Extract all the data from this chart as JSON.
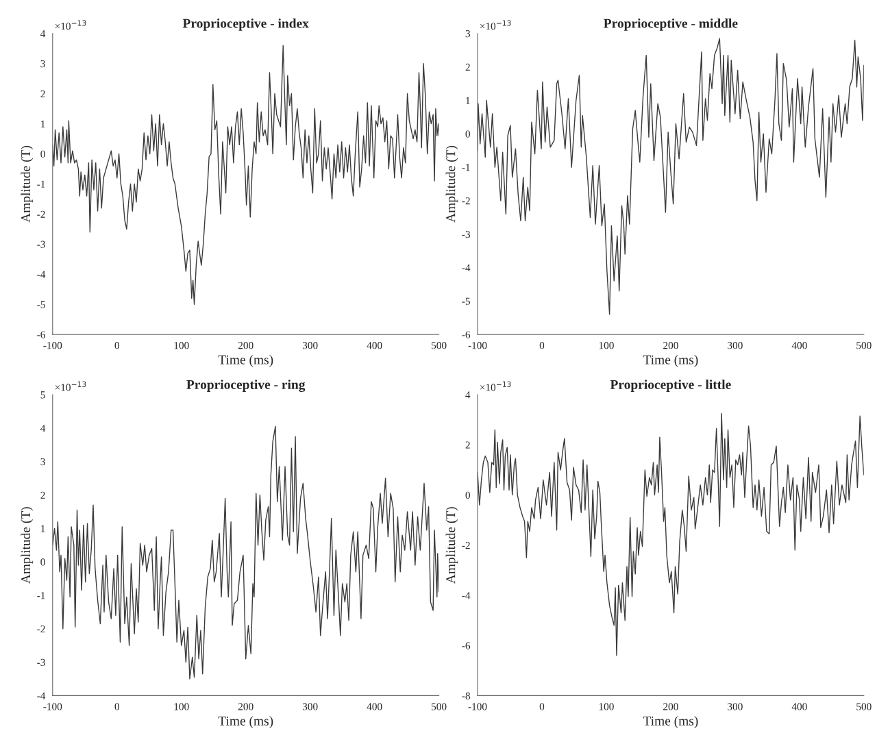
{
  "chart_data": [
    {
      "type": "line",
      "title": "Proprioceptive - index",
      "xlabel": "Time (ms)",
      "ylabel": "Amplitude (T)",
      "annotations": [
        "×10$^{−13}$"
      ],
      "xlim": [
        -100,
        500
      ],
      "xticks": [
        -100,
        0,
        100,
        200,
        300,
        400,
        500
      ],
      "ylim": [
        -6,
        4
      ],
      "yticks": [
        -6,
        -5,
        -4,
        -3,
        -2,
        -1,
        0,
        1,
        2,
        3,
        4
      ],
      "series": [
        {
          "color": "#3a3a3a",
          "x": [
            -100,
            -98,
            -96,
            -93,
            -90,
            -87,
            -84,
            -81,
            -78,
            -76,
            -75,
            -72,
            -69,
            -66,
            -63,
            -60,
            -58,
            -56,
            -53,
            -50,
            -47,
            -44,
            -42,
            -39,
            -36,
            -33,
            -30,
            -27,
            -24,
            -21,
            -17,
            -13,
            -9,
            -6,
            -3,
            0,
            3,
            6,
            9,
            12,
            15,
            18,
            21,
            24,
            27,
            30,
            33,
            36,
            39,
            42,
            45,
            48,
            51,
            54,
            57,
            60,
            63,
            66,
            69,
            72,
            75,
            78,
            81,
            84,
            87,
            90,
            95,
            100,
            104,
            107,
            110,
            113,
            116,
            118,
            120,
            123,
            126,
            129,
            131,
            134,
            137,
            140,
            143,
            146,
            149,
            152,
            155,
            158,
            161,
            164,
            167,
            169,
            172,
            175,
            178,
            181,
            184,
            187,
            190,
            193,
            196,
            199,
            201,
            204,
            207,
            210,
            213,
            216,
            218,
            221,
            224,
            227,
            230,
            234,
            237,
            240,
            242,
            245,
            248,
            251,
            254,
            258,
            260,
            263,
            265,
            268,
            271,
            274,
            277,
            280,
            283,
            286,
            289,
            292,
            295,
            298,
            301,
            304,
            307,
            310,
            313,
            316,
            319,
            322,
            325,
            328,
            331,
            334,
            337,
            340,
            343,
            346,
            349,
            352,
            355,
            358,
            361,
            364,
            367,
            370,
            374,
            377,
            380,
            383,
            386,
            389,
            392,
            395,
            399,
            402,
            405,
            407,
            410,
            413,
            416,
            419,
            422,
            425,
            428,
            431,
            434,
            436,
            439,
            442,
            445,
            448,
            451,
            454,
            457,
            460,
            463,
            466,
            469,
            471,
            473,
            476,
            479,
            482,
            485,
            488,
            491,
            493,
            495,
            497,
            499,
            500
          ],
          "values": [
            0.3,
            -0.4,
            0.8,
            -0.2,
            0.7,
            -0.3,
            0.9,
            -0.1,
            0.8,
            -0.3,
            1.1,
            -0.3,
            0.1,
            -0.3,
            -0.2,
            -0.5,
            -1.4,
            -0.6,
            -1.2,
            -0.7,
            -1.4,
            -0.3,
            -2.6,
            -0.2,
            -1.2,
            -0.3,
            -1.9,
            -0.5,
            -1.8,
            -0.8,
            -0.5,
            -0.2,
            0.1,
            -0.4,
            -0.2,
            -0.8,
            0.0,
            -1.0,
            -1.4,
            -2.2,
            -2.5,
            -1.6,
            -1.0,
            -1.9,
            -1.0,
            -1.6,
            -0.5,
            -0.9,
            -0.5,
            0.7,
            -0.2,
            0.6,
            0.0,
            1.3,
            0.1,
            1.0,
            -0.4,
            1.3,
            0.3,
            1.0,
            0.4,
            -0.4,
            0.4,
            -0.3,
            -0.8,
            -1.0,
            -1.8,
            -2.4,
            -3.2,
            -3.9,
            -3.3,
            -3.2,
            -4.8,
            -4.2,
            -5.0,
            -3.7,
            -2.9,
            -3.4,
            -3.7,
            -3.0,
            -2.0,
            -1.3,
            -0.1,
            0.0,
            2.3,
            0.8,
            1.1,
            -0.7,
            -2.0,
            0.4,
            -0.6,
            -1.3,
            0.9,
            0.3,
            0.9,
            -0.3,
            0.9,
            1.4,
            0.3,
            1.5,
            0.7,
            -0.6,
            -1.7,
            -0.4,
            -2.1,
            -0.5,
            0.4,
            0.0,
            1.7,
            0.4,
            1.4,
            0.6,
            0.8,
            0.3,
            2.7,
            1.2,
            0.0,
            2.0,
            1.3,
            1.1,
            0.9,
            3.6,
            2.2,
            0.3,
            2.6,
            1.6,
            2.0,
            -0.2,
            0.9,
            1.5,
            0.7,
            0.2,
            -0.8,
            0.8,
            -0.3,
            0.6,
            -0.5,
            -1.3,
            1.5,
            -0.3,
            0.0,
            1.1,
            -0.9,
            0.2,
            -0.5,
            0.2,
            -0.6,
            -1.5,
            0.0,
            -0.8,
            0.3,
            -0.6,
            0.4,
            -0.8,
            0.2,
            -0.6,
            0.3,
            -0.8,
            -1.4,
            0.0,
            1.4,
            -1.1,
            -0.5,
            0.6,
            -0.3,
            1.7,
            -0.4,
            1.6,
            -0.8,
            1.1,
            0.9,
            1.6,
            1.0,
            1.2,
            0.4,
            1.1,
            -0.5,
            0.6,
            0.5,
            -0.8,
            0.4,
            1.3,
            -0.1,
            -0.8,
            0.2,
            -0.3,
            2.0,
            1.1,
            0.8,
            0.5,
            0.8,
            0.4,
            2.7,
            1.6,
            0.2,
            3.0,
            1.9,
            0.0,
            1.4,
            1.0,
            1.3,
            -0.9,
            1.5,
            0.6,
            1.0,
            0.6
          ]
        }
      ]
    },
    {
      "type": "line",
      "title": "Proprioceptive - middle",
      "xlabel": "Time (ms)",
      "ylabel": "Amplitude (T)",
      "annotations": [
        "×10$^{−13}$"
      ],
      "xlim": [
        -100,
        500
      ],
      "xticks": [
        -100,
        0,
        100,
        200,
        300,
        400,
        500
      ],
      "ylim": [
        -6,
        3
      ],
      "yticks": [
        -6,
        -5,
        -4,
        -3,
        -2,
        -1,
        0,
        1,
        2,
        3
      ],
      "series": [
        {
          "color": "#3a3a3a",
          "x": [
            -100,
            -99,
            -96,
            -93,
            -88,
            -86,
            -83,
            -80,
            -77,
            -73,
            -70,
            -64,
            -61,
            -56,
            -53,
            -49,
            -46,
            -41,
            -37,
            -33,
            -29,
            -26,
            -22,
            -19,
            -16,
            -11,
            -7,
            -1,
            1,
            5,
            8,
            13,
            19,
            23,
            25,
            31,
            36,
            41,
            46,
            53,
            58,
            61,
            63,
            69,
            75,
            79,
            83,
            89,
            93,
            97,
            101,
            105,
            108,
            112,
            117,
            120,
            124,
            127,
            129,
            133,
            136,
            141,
            145,
            148,
            152,
            157,
            162,
            166,
            169,
            174,
            180,
            184,
            192,
            196,
            200,
            204,
            208,
            213,
            220,
            224,
            229,
            234,
            240,
            248,
            250,
            254,
            257,
            261,
            264,
            268,
            272,
            276,
            280,
            282,
            284,
            289,
            292,
            294,
            300,
            304,
            308,
            312,
            318,
            323,
            328,
            331,
            334,
            337,
            340,
            344,
            348,
            353,
            357,
            362,
            365,
            368,
            372,
            375,
            380,
            384,
            389,
            391,
            397,
            402,
            404,
            409,
            414,
            421,
            424,
            431,
            436,
            441,
            446,
            449,
            452,
            456,
            461,
            465,
            471,
            474,
            478,
            482,
            486,
            489,
            491,
            495,
            498,
            500
          ],
          "values": [
            -0.5,
            0.9,
            -0.3,
            0.6,
            -0.7,
            1.0,
            0.3,
            -0.4,
            0.6,
            -1.0,
            -0.4,
            -2.0,
            -0.55,
            -2.4,
            -0.05,
            0.25,
            -1.3,
            -0.45,
            -1.8,
            -2.6,
            -1.3,
            -2.6,
            -1.6,
            -2.3,
            0.35,
            -0.6,
            1.3,
            -0.45,
            1.55,
            -0.25,
            0.8,
            -0.4,
            -0.2,
            1.5,
            1.6,
            0.6,
            -0.45,
            1.05,
            -1.0,
            1.0,
            1.75,
            -0.4,
            0.55,
            -0.7,
            -2.5,
            -0.95,
            -2.7,
            -0.95,
            -2.75,
            -2.1,
            -4.1,
            -5.4,
            -2.75,
            -4.4,
            -3.05,
            -4.7,
            -2.15,
            -2.7,
            -3.6,
            -1.85,
            -2.7,
            0.15,
            0.7,
            0.0,
            -0.85,
            1.1,
            2.35,
            -0.1,
            1.5,
            -0.8,
            0.9,
            0.5,
            -2.35,
            0.05,
            -1.1,
            -2.1,
            0.3,
            -0.75,
            1.2,
            -0.25,
            0.2,
            0.05,
            -0.35,
            2.45,
            -0.2,
            1.05,
            0.4,
            1.8,
            1.35,
            2.35,
            2.55,
            2.85,
            0.9,
            2.35,
            0.55,
            2.35,
            0.35,
            2.2,
            0.6,
            1.9,
            0.45,
            1.55,
            0.95,
            0.5,
            -0.25,
            -1.4,
            -2.0,
            0.65,
            -0.85,
            0.0,
            -1.75,
            -0.15,
            -0.6,
            1.05,
            2.4,
            0.3,
            -0.2,
            2.1,
            1.6,
            0.2,
            1.35,
            -0.85,
            1.65,
            0.3,
            1.4,
            -0.4,
            0.8,
            1.95,
            -0.15,
            -1.3,
            0.75,
            -1.9,
            0.5,
            -0.85,
            0.9,
            0.05,
            1.15,
            -0.1,
            0.9,
            0.3,
            1.4,
            1.65,
            2.8,
            1.4,
            2.3,
            1.65,
            0.4,
            2.05
          ]
        }
      ]
    },
    {
      "type": "line",
      "title": "Proprioceptive - ring",
      "xlabel": "Time (ms)",
      "ylabel": "Amplitude (T)",
      "annotations": [
        "×10$^{−13}$"
      ],
      "xlim": [
        -100,
        500
      ],
      "xticks": [
        -100,
        0,
        100,
        200,
        300,
        400,
        500
      ],
      "ylim": [
        -4,
        5
      ],
      "yticks": [
        -4,
        -3,
        -2,
        -1,
        0,
        1,
        2,
        3,
        4,
        5
      ],
      "series": [
        {
          "color": "#3a3a3a",
          "x": [
            -100,
            -97,
            -94,
            -92,
            -89,
            -87,
            -84,
            -81,
            -78,
            -76,
            -73,
            -71,
            -67,
            -65,
            -62,
            -60,
            -58,
            -55,
            -52,
            -49,
            -46,
            -43,
            -40,
            -37,
            -34,
            -30,
            -26,
            -22,
            -20,
            -17,
            -13,
            -9,
            -5,
            -2,
            1,
            5,
            8,
            12,
            15,
            19,
            22,
            27,
            30,
            33,
            36,
            40,
            43,
            46,
            50,
            54,
            58,
            61,
            64,
            67,
            69,
            72,
            76,
            80,
            84,
            87,
            90,
            93,
            96,
            100,
            104,
            107,
            110,
            113,
            117,
            120,
            124,
            127,
            130,
            133,
            137,
            141,
            145,
            148,
            151,
            154,
            159,
            162,
            165,
            168,
            171,
            173,
            177,
            179,
            182,
            187,
            191,
            196,
            200,
            204,
            208,
            211,
            213,
            216,
            219,
            222,
            225,
            228,
            231,
            235,
            237,
            239,
            242,
            246,
            249,
            252,
            257,
            261,
            265,
            268,
            271,
            274,
            277,
            280,
            285,
            289,
            293,
            296,
            300,
            305,
            309,
            313,
            316,
            320,
            324,
            327,
            330,
            333,
            337,
            340,
            344,
            347,
            350,
            354,
            357,
            360,
            363,
            367,
            371,
            374,
            379,
            382,
            387,
            391,
            395,
            398,
            402,
            405,
            409,
            412,
            417,
            421,
            425,
            429,
            432,
            436,
            440,
            443,
            447,
            451,
            456,
            459,
            463,
            467,
            471,
            477,
            481,
            484,
            487,
            491,
            493,
            497,
            498,
            500
          ],
          "values": [
            0.5,
            1.0,
            0.35,
            1.2,
            -0.3,
            0.2,
            -2.0,
            0.1,
            -0.55,
            0.75,
            -1.05,
            1.05,
            0.5,
            -1.95,
            1.55,
            -0.1,
            0.95,
            -0.85,
            1.1,
            -0.6,
            1.15,
            -0.35,
            0.35,
            1.7,
            -0.2,
            -1.15,
            -1.85,
            -0.1,
            -1.5,
            0.2,
            -1.2,
            -1.7,
            -0.2,
            -1.6,
            0.2,
            -2.4,
            1.05,
            -1.85,
            -1.05,
            -2.5,
            -0.05,
            -2.15,
            -0.8,
            -1.8,
            0.55,
            -0.1,
            0.5,
            -0.3,
            0.2,
            0.4,
            -1.45,
            0.75,
            -2.0,
            -0.6,
            0.15,
            -2.2,
            -0.9,
            -0.3,
            0.95,
            0.95,
            -0.65,
            -2.4,
            -1.15,
            -2.5,
            -2.05,
            -3.0,
            -1.95,
            -3.5,
            -2.85,
            -3.45,
            -1.6,
            -2.9,
            -2.05,
            -3.35,
            -1.35,
            -0.45,
            -0.2,
            0.65,
            -0.6,
            -0.3,
            0.85,
            -1.05,
            0.35,
            1.9,
            -0.3,
            -1.05,
            1.2,
            -1.9,
            -1.25,
            -1.15,
            -0.3,
            0.2,
            -2.9,
            -1.9,
            -2.75,
            -0.65,
            -1.05,
            2.05,
            0.5,
            2.0,
            0.9,
            0.05,
            1.25,
            1.65,
            0.75,
            2.6,
            3.6,
            4.05,
            1.8,
            2.85,
            0.65,
            2.85,
            0.8,
            0.5,
            3.4,
            0.9,
            3.75,
            0.25,
            1.9,
            2.35,
            1.3,
            0.8,
            0.05,
            -0.75,
            -1.5,
            -0.45,
            -2.2,
            -1.2,
            -0.3,
            -1.7,
            -0.3,
            1.3,
            -1.6,
            0.35,
            -1.05,
            -2.2,
            -0.65,
            -1.2,
            -0.65,
            -1.75,
            0.2,
            0.9,
            -0.3,
            0.9,
            -1.7,
            0.2,
            0.5,
            0.1,
            1.8,
            1.6,
            -0.3,
            1.05,
            2.05,
            1.15,
            2.5,
            0.75,
            2.05,
            1.6,
            -0.6,
            1.35,
            -0.3,
            0.8,
            0.35,
            1.5,
            0.35,
            1.5,
            -0.1,
            1.35,
            0.35,
            2.35,
            0.95,
            1.65,
            -1.2,
            -1.45,
            0.95,
            -1.05,
            0.25,
            -0.9
          ]
        }
      ]
    },
    {
      "type": "line",
      "title": "Proprioceptive - little",
      "xlabel": "Time (ms)",
      "ylabel": "Amplitude (T)",
      "annotations": [
        "×10$^{−13}$"
      ],
      "xlim": [
        -100,
        500
      ],
      "xticks": [
        -100,
        0,
        100,
        200,
        300,
        400,
        500
      ],
      "ylim": [
        -8,
        4
      ],
      "yticks": [
        -8,
        -6,
        -4,
        -2,
        0,
        2,
        4
      ],
      "series": [
        {
          "color": "#3a3a3a",
          "x": [
            -100,
            -97,
            -94,
            -91,
            -88,
            -84,
            -81,
            -78,
            -75,
            -73,
            -71,
            -69,
            -66,
            -64,
            -61,
            -59,
            -57,
            -54,
            -51,
            -49,
            -46,
            -43,
            -41,
            -38,
            -34,
            -30,
            -27,
            -24,
            -22,
            -19,
            -16,
            -12,
            -10,
            -6,
            -2,
            2,
            7,
            12,
            15,
            19,
            23,
            25,
            29,
            32,
            35,
            39,
            43,
            46,
            49,
            53,
            57,
            61,
            64,
            67,
            70,
            73,
            76,
            79,
            82,
            85,
            87,
            90,
            92,
            96,
            98,
            101,
            105,
            109,
            112,
            114,
            116,
            119,
            123,
            125,
            129,
            132,
            134,
            137,
            140,
            142,
            145,
            148,
            150,
            153,
            156,
            160,
            163,
            167,
            170,
            173,
            175,
            179,
            181,
            183,
            186,
            189,
            191,
            194,
            198,
            201,
            205,
            207,
            211,
            214,
            218,
            221,
            224,
            228,
            232,
            236,
            238,
            242,
            246,
            250,
            254,
            257,
            260,
            262,
            265,
            268,
            271,
            273,
            276,
            279,
            282,
            284,
            287,
            289,
            292,
            295,
            298,
            301,
            304,
            307,
            310,
            312,
            315,
            318,
            321,
            324,
            328,
            331,
            334,
            337,
            341,
            345,
            349,
            353,
            356,
            360,
            364,
            369,
            372,
            375,
            378,
            382,
            386,
            390,
            393,
            396,
            400,
            402,
            406,
            410,
            414,
            418,
            420,
            425,
            430,
            433,
            437,
            442,
            446,
            450,
            453,
            458,
            462,
            466,
            472,
            474,
            477,
            481,
            484,
            487,
            490,
            494,
            497,
            500
          ],
          "values": [
            0.9,
            -0.4,
            0.6,
            1.3,
            1.55,
            1.3,
            0.1,
            1.3,
            1.2,
            2.6,
            0.3,
            2.1,
            0.45,
            1.7,
            2.2,
            0.2,
            1.55,
            1.9,
            0.2,
            1.6,
            0.0,
            1.2,
            1.45,
            0.0,
            -0.5,
            -0.85,
            -1.05,
            -2.5,
            -1.05,
            -1.45,
            -0.5,
            -0.95,
            -0.2,
            0.3,
            -0.95,
            0.6,
            -0.4,
            0.9,
            -0.85,
            1.3,
            -1.4,
            1.7,
            1.0,
            1.7,
            2.25,
            0.5,
            0.2,
            -1.0,
            1.1,
            0.4,
            0.2,
            -0.7,
            1.4,
            -0.6,
            1.2,
            -0.6,
            -2.45,
            0.2,
            -1.75,
            -0.85,
            0.55,
            0.1,
            -1.05,
            -3.05,
            -2.4,
            -3.5,
            -4.4,
            -4.9,
            -5.2,
            -3.7,
            -6.4,
            -3.6,
            -4.7,
            -3.5,
            -5.0,
            -2.85,
            -4.05,
            -0.9,
            -4.05,
            -2.25,
            -3.15,
            -1.3,
            -2.4,
            -1.45,
            -2.05,
            1.0,
            -0.05,
            0.7,
            0.4,
            1.3,
            0.0,
            1.2,
            0.1,
            2.3,
            0.8,
            -1.05,
            -0.5,
            -2.45,
            -3.5,
            -3.05,
            -4.7,
            -2.85,
            -3.95,
            -1.85,
            -0.6,
            -1.25,
            -2.25,
            0.75,
            -0.6,
            -0.1,
            -1.35,
            -0.5,
            0.4,
            -0.4,
            0.7,
            0.0,
            1.2,
            -0.3,
            1.0,
            0.9,
            2.65,
            1.2,
            -1.25,
            3.25,
            0.6,
            2.25,
            0.3,
            2.6,
            0.7,
            1.2,
            -0.5,
            1.4,
            1.2,
            1.6,
            0.8,
            1.7,
            -0.1,
            1.4,
            2.75,
            1.95,
            -0.5,
            0.4,
            -0.6,
            0.6,
            -0.85,
            0.3,
            -1.45,
            -1.55,
            1.2,
            1.3,
            1.95,
            -1.25,
            -0.3,
            0.3,
            -0.7,
            1.2,
            -0.2,
            0.7,
            -2.2,
            0.4,
            -0.2,
            -1.45,
            0.7,
            -0.95,
            1.5,
            -1.05,
            0.9,
            0.1,
            1.2,
            -1.3,
            -0.85,
            0.2,
            -1.5,
            0.4,
            -1.15,
            1.35,
            -0.4,
            0.4,
            -0.3,
            1.6,
            -0.2,
            1.2,
            1.7,
            2.15,
            0.3,
            3.15,
            1.85,
            0.8
          ]
        }
      ]
    }
  ]
}
